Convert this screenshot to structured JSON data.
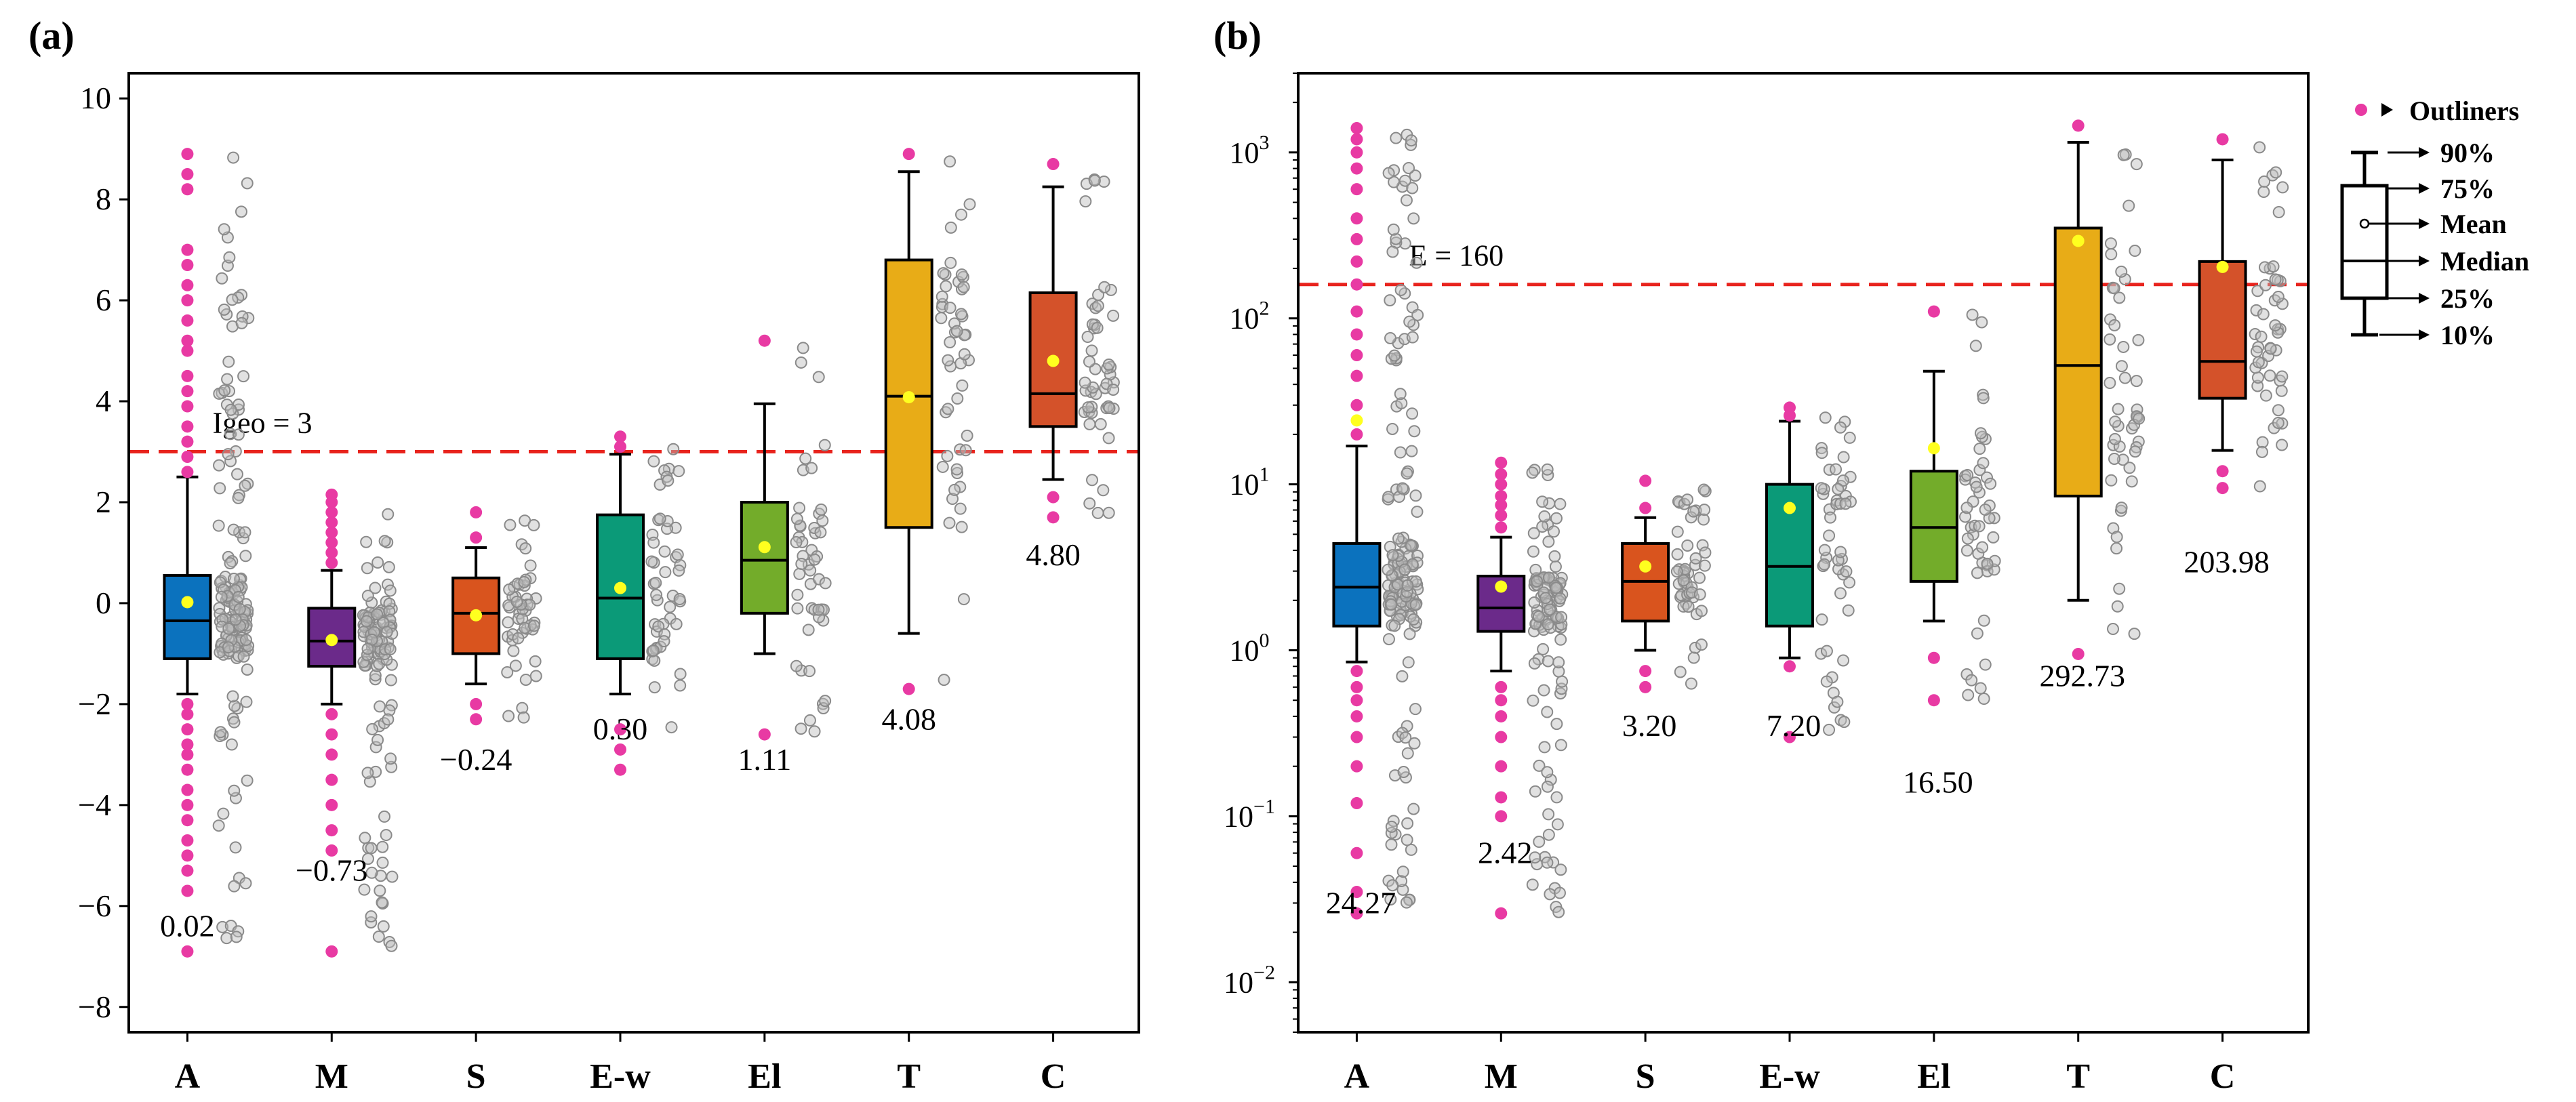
{
  "colors": {
    "box": [
      "#0b72be",
      "#6b2a8a",
      "#d9541e",
      "#0b9a78",
      "#73ac2a",
      "#e8ac17",
      "#d4522a"
    ],
    "outlier": "#e83aa3",
    "scatter": "#9a9a9a",
    "mean": "#ffff1f",
    "threshold": "#e8231d"
  },
  "chart_data": [
    {
      "type": "box",
      "panel_label": "(a)",
      "categories": [
        "A",
        "M",
        "S",
        "E-w",
        "El",
        "T",
        "C"
      ],
      "yscale": "linear",
      "ylim": [
        -8.5,
        10.5
      ],
      "yticks": [
        -8,
        -6,
        -4,
        -2,
        0,
        2,
        4,
        6,
        8,
        10
      ],
      "ytick_labels": [
        "−8",
        "−6",
        "−4",
        "−2",
        "0",
        "2",
        "4",
        "6",
        "8",
        "10"
      ],
      "threshold": {
        "value": 3,
        "label": "Igeo = 3"
      },
      "boxes": [
        {
          "p10": -1.8,
          "q1": -1.1,
          "median": -0.35,
          "mean": 0.02,
          "q3": 0.55,
          "p90": 2.5,
          "outliers_low": [
            -2.0,
            -2.2,
            -2.5,
            -2.8,
            -3.0,
            -3.3,
            -3.7,
            -4.0,
            -4.3,
            -4.7,
            -5.0,
            -5.3,
            -5.7,
            -6.9
          ],
          "outliers_high": [
            2.6,
            2.9,
            3.2,
            3.5,
            3.9,
            4.2,
            4.5,
            5.0,
            5.2,
            5.6,
            6.0,
            6.3,
            6.7,
            7.0,
            8.2,
            8.5,
            8.9
          ]
        },
        {
          "p10": -2.0,
          "q1": -1.25,
          "median": -0.75,
          "mean": -0.73,
          "q3": -0.1,
          "p90": 0.65,
          "outliers_low": [
            -2.2,
            -2.6,
            -3.0,
            -3.5,
            -4.0,
            -4.5,
            -4.9,
            -6.9
          ],
          "outliers_high": [
            0.8,
            1.0,
            1.2,
            1.4,
            1.6,
            1.8,
            2.0,
            2.15
          ]
        },
        {
          "p10": -1.6,
          "q1": -1.0,
          "median": -0.2,
          "mean": -0.24,
          "q3": 0.5,
          "p90": 1.1,
          "outliers_low": [
            -2.0,
            -2.3
          ],
          "outliers_high": [
            1.3,
            1.8
          ]
        },
        {
          "p10": -1.8,
          "q1": -1.1,
          "median": 0.1,
          "mean": 0.3,
          "q3": 1.75,
          "p90": 2.95,
          "outliers_low": [
            -2.5,
            -2.9,
            -3.3
          ],
          "outliers_high": [
            3.1,
            3.3
          ]
        },
        {
          "p10": -1.0,
          "q1": -0.2,
          "median": 0.85,
          "mean": 1.11,
          "q3": 2.0,
          "p90": 3.95,
          "outliers_low": [
            -2.6
          ],
          "outliers_high": [
            5.2
          ]
        },
        {
          "p10": -0.6,
          "q1": 1.5,
          "median": 4.1,
          "mean": 4.08,
          "q3": 6.8,
          "p90": 8.55,
          "outliers_low": [
            -1.7
          ],
          "outliers_high": [
            8.9
          ]
        },
        {
          "p10": 2.45,
          "q1": 3.5,
          "median": 4.15,
          "mean": 4.8,
          "q3": 6.15,
          "p90": 8.25,
          "outliers_low": [
            1.7,
            2.1
          ],
          "outliers_high": [
            8.7
          ]
        }
      ],
      "mean_labels": [
        "0.02",
        "−0.73",
        "−0.24",
        "0.30",
        "1.11",
        "4.08",
        "4.80"
      ],
      "mean_label_values": [
        -6.4,
        -5.3,
        -3.1,
        -2.5,
        -3.1,
        -2.3,
        0.95
      ]
    },
    {
      "type": "box",
      "panel_label": "(b)",
      "categories": [
        "A",
        "M",
        "S",
        "E-w",
        "El",
        "T",
        "C"
      ],
      "yscale": "log",
      "ylim": [
        0.005,
        3000
      ],
      "yticks": [
        0.01,
        0.1,
        1,
        10,
        100,
        1000
      ],
      "ytick_base": "10",
      "ytick_exponents": [
        "−2",
        "−1",
        "0",
        "1",
        "2",
        "3"
      ],
      "threshold": {
        "value": 160,
        "label": "E = 160"
      },
      "boxes": [
        {
          "p10": 0.85,
          "q1": 1.4,
          "median": 2.4,
          "mean": 24.27,
          "q3": 4.4,
          "p90": 17,
          "outliers_low": [
            0.75,
            0.6,
            0.5,
            0.4,
            0.3,
            0.2,
            0.12,
            0.06,
            0.035,
            0.026
          ],
          "outliers_high": [
            20,
            30,
            45,
            60,
            80,
            110,
            160,
            220,
            300,
            400,
            600,
            800,
            1000,
            1200,
            1400
          ]
        },
        {
          "p10": 0.75,
          "q1": 1.3,
          "median": 1.8,
          "mean": 2.42,
          "q3": 2.8,
          "p90": 4.8,
          "outliers_low": [
            0.6,
            0.5,
            0.4,
            0.3,
            0.2,
            0.13,
            0.1,
            0.026
          ],
          "outliers_high": [
            5.5,
            6.5,
            7.5,
            8.5,
            10,
            11.5,
            13.5
          ]
        },
        {
          "p10": 1.0,
          "q1": 1.5,
          "median": 2.6,
          "mean": 3.2,
          "q3": 4.4,
          "p90": 6.3,
          "outliers_low": [
            0.75,
            0.6
          ],
          "outliers_high": [
            7.2,
            10.5
          ]
        },
        {
          "p10": 0.9,
          "q1": 1.4,
          "median": 3.2,
          "mean": 7.2,
          "q3": 10,
          "p90": 24,
          "outliers_low": [
            0.8,
            0.3
          ],
          "outliers_high": [
            26,
            29
          ]
        },
        {
          "p10": 1.5,
          "q1": 2.6,
          "median": 5.5,
          "mean": 16.5,
          "q3": 12,
          "p90": 48,
          "outliers_low": [
            0.9,
            0.5
          ],
          "outliers_high": [
            110
          ]
        },
        {
          "p10": 2.0,
          "q1": 8.5,
          "median": 52,
          "mean": 292.73,
          "q3": 350,
          "p90": 1150,
          "outliers_low": [
            0.95
          ],
          "outliers_high": [
            1450
          ]
        },
        {
          "p10": 16,
          "q1": 33,
          "median": 55,
          "mean": 203.98,
          "q3": 220,
          "p90": 900,
          "outliers_low": [
            12,
            9.5
          ],
          "outliers_high": [
            1200
          ]
        }
      ],
      "mean_labels": [
        "24.27",
        "2.42",
        "3.20",
        "7.20",
        "16.50",
        "292.73",
        "203.98"
      ],
      "mean_label_values": [
        0.03,
        0.06,
        0.35,
        0.35,
        0.16,
        0.7,
        3.4
      ]
    }
  ],
  "legend": {
    "outlier_label": "Outliners",
    "labels": [
      "90%",
      "75%",
      "Mean",
      "Median",
      "25%",
      "10%"
    ]
  }
}
